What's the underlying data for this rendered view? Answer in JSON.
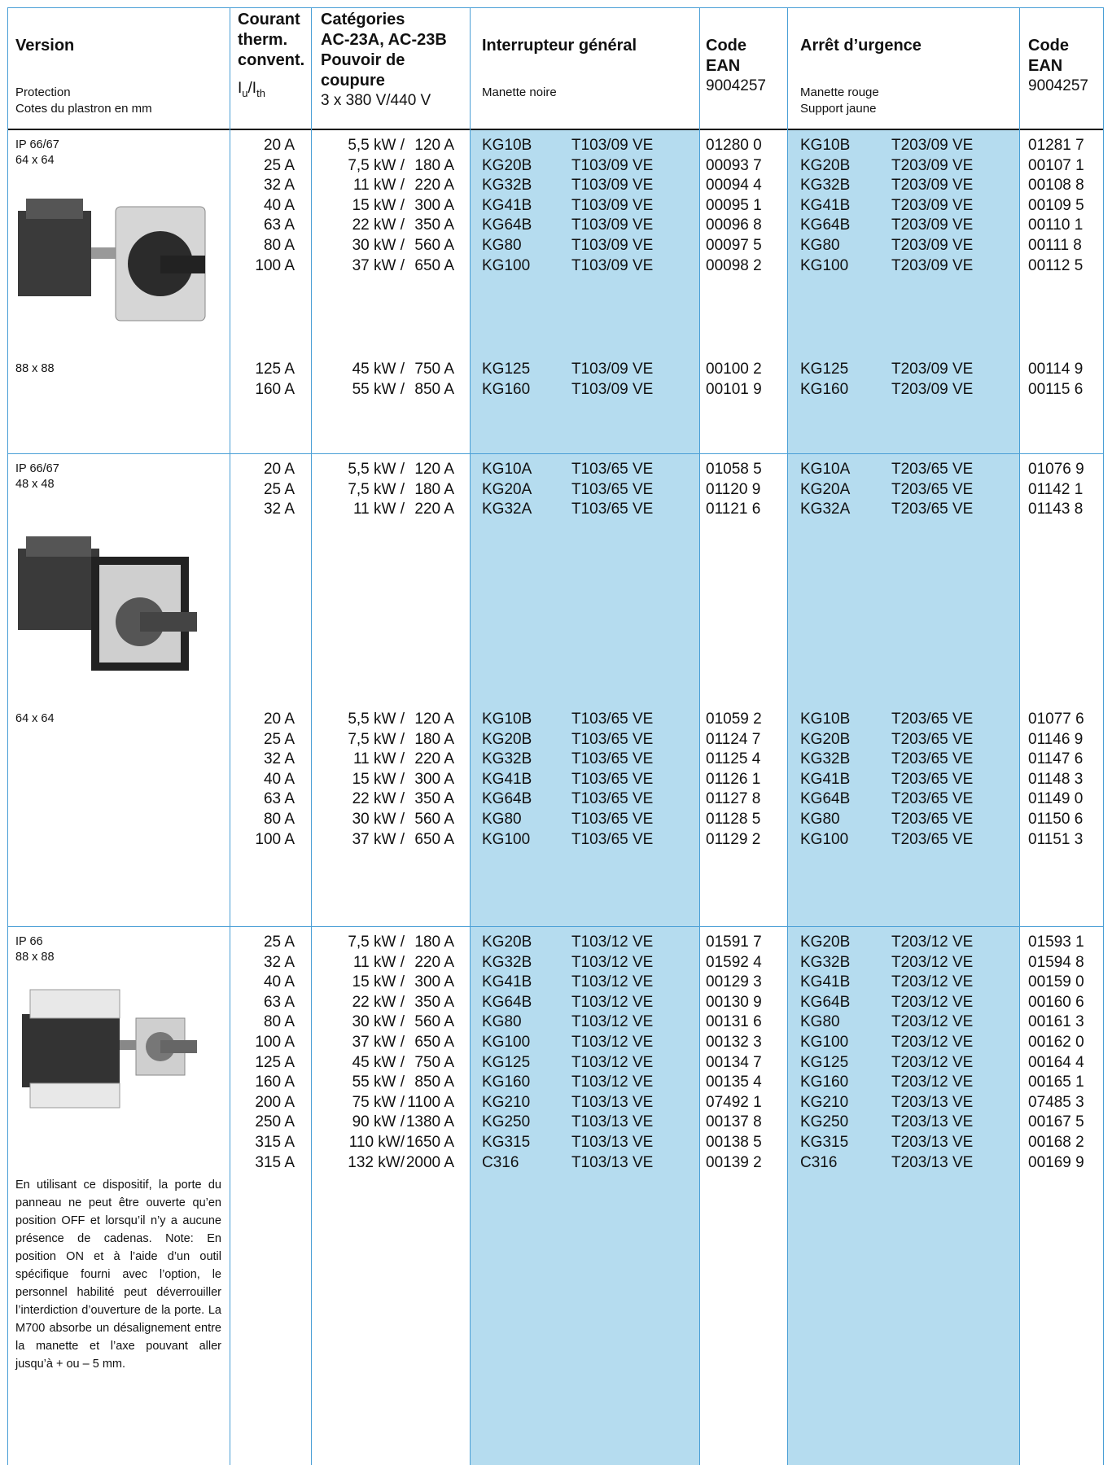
{
  "header": {
    "version": {
      "title": "Version",
      "lines": [
        "Protection",
        "Cotes du plastron en mm"
      ]
    },
    "current": {
      "lines": [
        "Courant",
        "therm.",
        "convent."
      ],
      "symbol": [
        "I",
        "u",
        "/I",
        "th"
      ]
    },
    "categories": {
      "lines": [
        "Catégories",
        "AC-23A, AC-23B",
        "Pouvoir de",
        "coupure"
      ],
      "voltage": "3 x 380 V/440 V"
    },
    "main_switch": {
      "title": "Interrupteur général",
      "lines": [
        "Manette noire"
      ]
    },
    "main_ean": {
      "lines": [
        "Code",
        "EAN"
      ],
      "prefix": "9004257"
    },
    "emergency": {
      "title": "Arrêt d’urgence",
      "lines": [
        "Manette rouge",
        "Support jaune"
      ]
    },
    "emergency_ean": {
      "lines": [
        "Code",
        "EAN"
      ],
      "prefix": "9004257"
    }
  },
  "sections": [
    {
      "groups": [
        {
          "labels": [
            "IP 66/67",
            "64 x 64"
          ],
          "rows": [
            [
              "20 A",
              "5,5 kW /",
              "120 A",
              "KG10B",
              "T103/09 VE",
              "01280 0",
              "KG10B",
              "T203/09 VE",
              "01281 7"
            ],
            [
              "25 A",
              "7,5 kW /",
              "180 A",
              "KG20B",
              "T103/09 VE",
              "00093 7",
              "KG20B",
              "T203/09 VE",
              "00107 1"
            ],
            [
              "32 A",
              "11 kW /",
              "220 A",
              "KG32B",
              "T103/09 VE",
              "00094 4",
              "KG32B",
              "T203/09 VE",
              "00108 8"
            ],
            [
              "40 A",
              "15 kW /",
              "300 A",
              "KG41B",
              "T103/09 VE",
              "00095 1",
              "KG41B",
              "T203/09 VE",
              "00109 5"
            ],
            [
              "63 A",
              "22 kW /",
              "350 A",
              "KG64B",
              "T103/09 VE",
              "00096 8",
              "KG64B",
              "T203/09 VE",
              "00110 1"
            ],
            [
              "80 A",
              "30 kW /",
              "560 A",
              "KG80",
              "T103/09 VE",
              "00097 5",
              "KG80",
              "T203/09 VE",
              "00111 8"
            ],
            [
              "100 A",
              "37 kW /",
              "650 A",
              "KG100",
              "T103/09 VE",
              "00098 2",
              "KG100",
              "T203/09 VE",
              "00112 5"
            ]
          ]
        },
        {
          "labels": [
            "88 x 88"
          ],
          "rows": [
            [
              "125 A",
              "45 kW /",
              "750 A",
              "KG125",
              "T103/09 VE",
              "00100 2",
              "KG125",
              "T203/09 VE",
              "00114 9"
            ],
            [
              "160 A",
              "55 kW /",
              "850 A",
              "KG160",
              "T103/09 VE",
              "00101 9",
              "KG160",
              "T203/09 VE",
              "00115 6"
            ]
          ]
        }
      ]
    },
    {
      "groups": [
        {
          "labels": [
            "IP 66/67",
            "48 x 48"
          ],
          "rows": [
            [
              "20 A",
              "5,5 kW /",
              "120 A",
              "KG10A",
              "T103/65 VE",
              "01058 5",
              "KG10A",
              "T203/65 VE",
              "01076 9"
            ],
            [
              "25 A",
              "7,5 kW /",
              "180 A",
              "KG20A",
              "T103/65 VE",
              "01120 9",
              "KG20A",
              "T203/65 VE",
              "01142 1"
            ],
            [
              "32 A",
              "11 kW /",
              "220 A",
              "KG32A",
              "T103/65 VE",
              "01121 6",
              "KG32A",
              "T203/65 VE",
              "01143 8"
            ]
          ]
        },
        {
          "labels": [
            "64 x 64"
          ],
          "rows": [
            [
              "20 A",
              "5,5 kW /",
              "120 A",
              "KG10B",
              "T103/65 VE",
              "01059 2",
              "KG10B",
              "T203/65 VE",
              "01077 6"
            ],
            [
              "25 A",
              "7,5 kW /",
              "180 A",
              "KG20B",
              "T103/65 VE",
              "01124 7",
              "KG20B",
              "T203/65 VE",
              "01146 9"
            ],
            [
              "32 A",
              "11 kW /",
              "220 A",
              "KG32B",
              "T103/65 VE",
              "01125 4",
              "KG32B",
              "T203/65 VE",
              "01147 6"
            ],
            [
              "40 A",
              "15 kW /",
              "300 A",
              "KG41B",
              "T103/65 VE",
              "01126 1",
              "KG41B",
              "T203/65 VE",
              "01148 3"
            ],
            [
              "63 A",
              "22 kW /",
              "350 A",
              "KG64B",
              "T103/65 VE",
              "01127 8",
              "KG64B",
              "T203/65 VE",
              "01149 0"
            ],
            [
              "80 A",
              "30 kW /",
              "560 A",
              "KG80",
              "T103/65 VE",
              "01128 5",
              "KG80",
              "T203/65 VE",
              "01150 6"
            ],
            [
              "100 A",
              "37 kW /",
              "650 A",
              "KG100",
              "T103/65 VE",
              "01129 2",
              "KG100",
              "T203/65 VE",
              "01151 3"
            ]
          ]
        }
      ]
    },
    {
      "groups": [
        {
          "labels": [
            "IP 66",
            "88 x 88"
          ],
          "rows": [
            [
              "25 A",
              "7,5 kW /",
              "180 A",
              "KG20B",
              "T103/12 VE",
              "01591 7",
              "KG20B",
              "T203/12 VE",
              "01593 1"
            ],
            [
              "32 A",
              "11 kW /",
              "220 A",
              "KG32B",
              "T103/12 VE",
              "01592 4",
              "KG32B",
              "T203/12 VE",
              "01594 8"
            ],
            [
              "40 A",
              "15 kW /",
              "300 A",
              "KG41B",
              "T103/12 VE",
              "00129 3",
              "KG41B",
              "T203/12 VE",
              "00159 0"
            ],
            [
              "63 A",
              "22 kW /",
              "350 A",
              "KG64B",
              "T103/12 VE",
              "00130 9",
              "KG64B",
              "T203/12 VE",
              "00160 6"
            ],
            [
              "80 A",
              "30 kW /",
              "560 A",
              "KG80",
              "T103/12 VE",
              "00131 6",
              "KG80",
              "T203/12 VE",
              "00161 3"
            ],
            [
              "100 A",
              "37 kW /",
              "650 A",
              "KG100",
              "T103/12 VE",
              "00132 3",
              "KG100",
              "T203/12 VE",
              "00162 0"
            ],
            [
              "125 A",
              "45 kW /",
              "750 A",
              "KG125",
              "T103/12 VE",
              "00134 7",
              "KG125",
              "T203/12 VE",
              "00164 4"
            ],
            [
              "160 A",
              "55 kW /",
              "850 A",
              "KG160",
              "T103/12 VE",
              "00135 4",
              "KG160",
              "T203/12 VE",
              "00165 1"
            ],
            [
              "200 A",
              "75 kW /",
              "1100 A",
              "KG210",
              "T103/13 VE",
              "07492 1",
              "KG210",
              "T203/13 VE",
              "07485 3"
            ],
            [
              "250 A",
              "90 kW /",
              "1380 A",
              "KG250",
              "T103/13 VE",
              "00137 8",
              "KG250",
              "T203/13 VE",
              "00167 5"
            ],
            [
              "315 A",
              "110 kW/",
              "1650 A",
              "KG315",
              "T103/13 VE",
              "00138 5",
              "KG315",
              "T203/13 VE",
              "00168 2"
            ],
            [
              "315 A",
              "132 kW/",
              "2000 A",
              "C316",
              "T103/13 VE",
              "00139 2",
              "C316",
              "T203/13 VE",
              "00169 9"
            ]
          ]
        }
      ],
      "note": "En utilisant ce dispositif, la porte du panneau ne peut être ouverte qu’en position OFF et lorsqu’il n’y a aucune présence de cadenas. Note: En position ON et à l’aide d’un outil spécifique fourni avec l’option, le personnel habilité peut déverrouiller l’interdiction d’ouverture de la porte. La M700 absorbe un désalignement entre la manette et l’axe pouvant aller jusqu’à + ou – 5 mm."
    }
  ]
}
